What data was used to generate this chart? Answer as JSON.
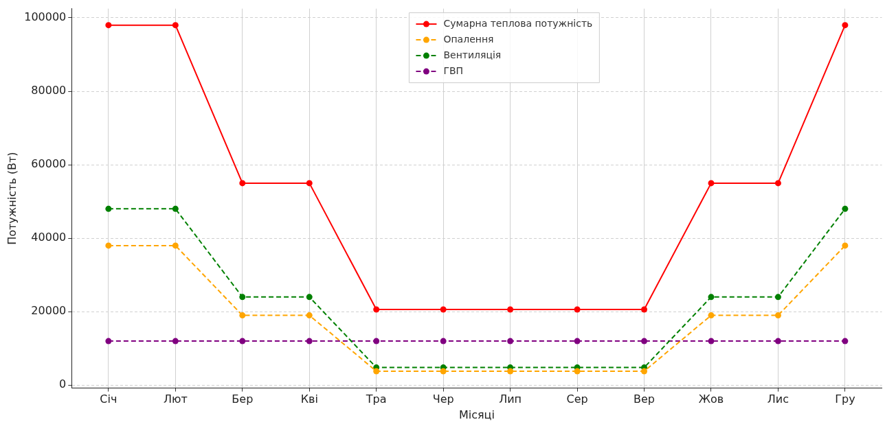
{
  "chart_data": {
    "type": "line",
    "xlabel": "Місяці",
    "ylabel": "Потужність (Вт)",
    "categories": [
      "Січ",
      "Лют",
      "Бер",
      "Кві",
      "Тра",
      "Чер",
      "Лип",
      "Сер",
      "Вер",
      "Жов",
      "Лис",
      "Гру"
    ],
    "series": [
      {
        "name": "Сумарна теплова потужність",
        "color": "#ff0000",
        "line_style": "solid",
        "values": [
          98000,
          98000,
          55000,
          55000,
          20600,
          20600,
          20600,
          20600,
          20600,
          55000,
          55000,
          98000
        ]
      },
      {
        "name": "Опалення",
        "color": "#ffa500",
        "line_style": "dashed",
        "values": [
          38000,
          38000,
          19000,
          19000,
          3800,
          3800,
          3800,
          3800,
          3800,
          19000,
          19000,
          38000
        ]
      },
      {
        "name": "Вентиляція",
        "color": "#008000",
        "line_style": "dashed",
        "values": [
          48000,
          48000,
          24000,
          24000,
          4800,
          4800,
          4800,
          4800,
          4800,
          24000,
          24000,
          48000
        ]
      },
      {
        "name": "ГВП",
        "color": "#800080",
        "line_style": "dashed",
        "values": [
          12000,
          12000,
          12000,
          12000,
          12000,
          12000,
          12000,
          12000,
          12000,
          12000,
          12000,
          12000
        ]
      }
    ],
    "ylim": [
      -800,
      102500
    ],
    "yticks": [
      0,
      20000,
      40000,
      60000,
      80000,
      100000
    ],
    "grid": true,
    "legend": "top center",
    "marker": "circle"
  }
}
